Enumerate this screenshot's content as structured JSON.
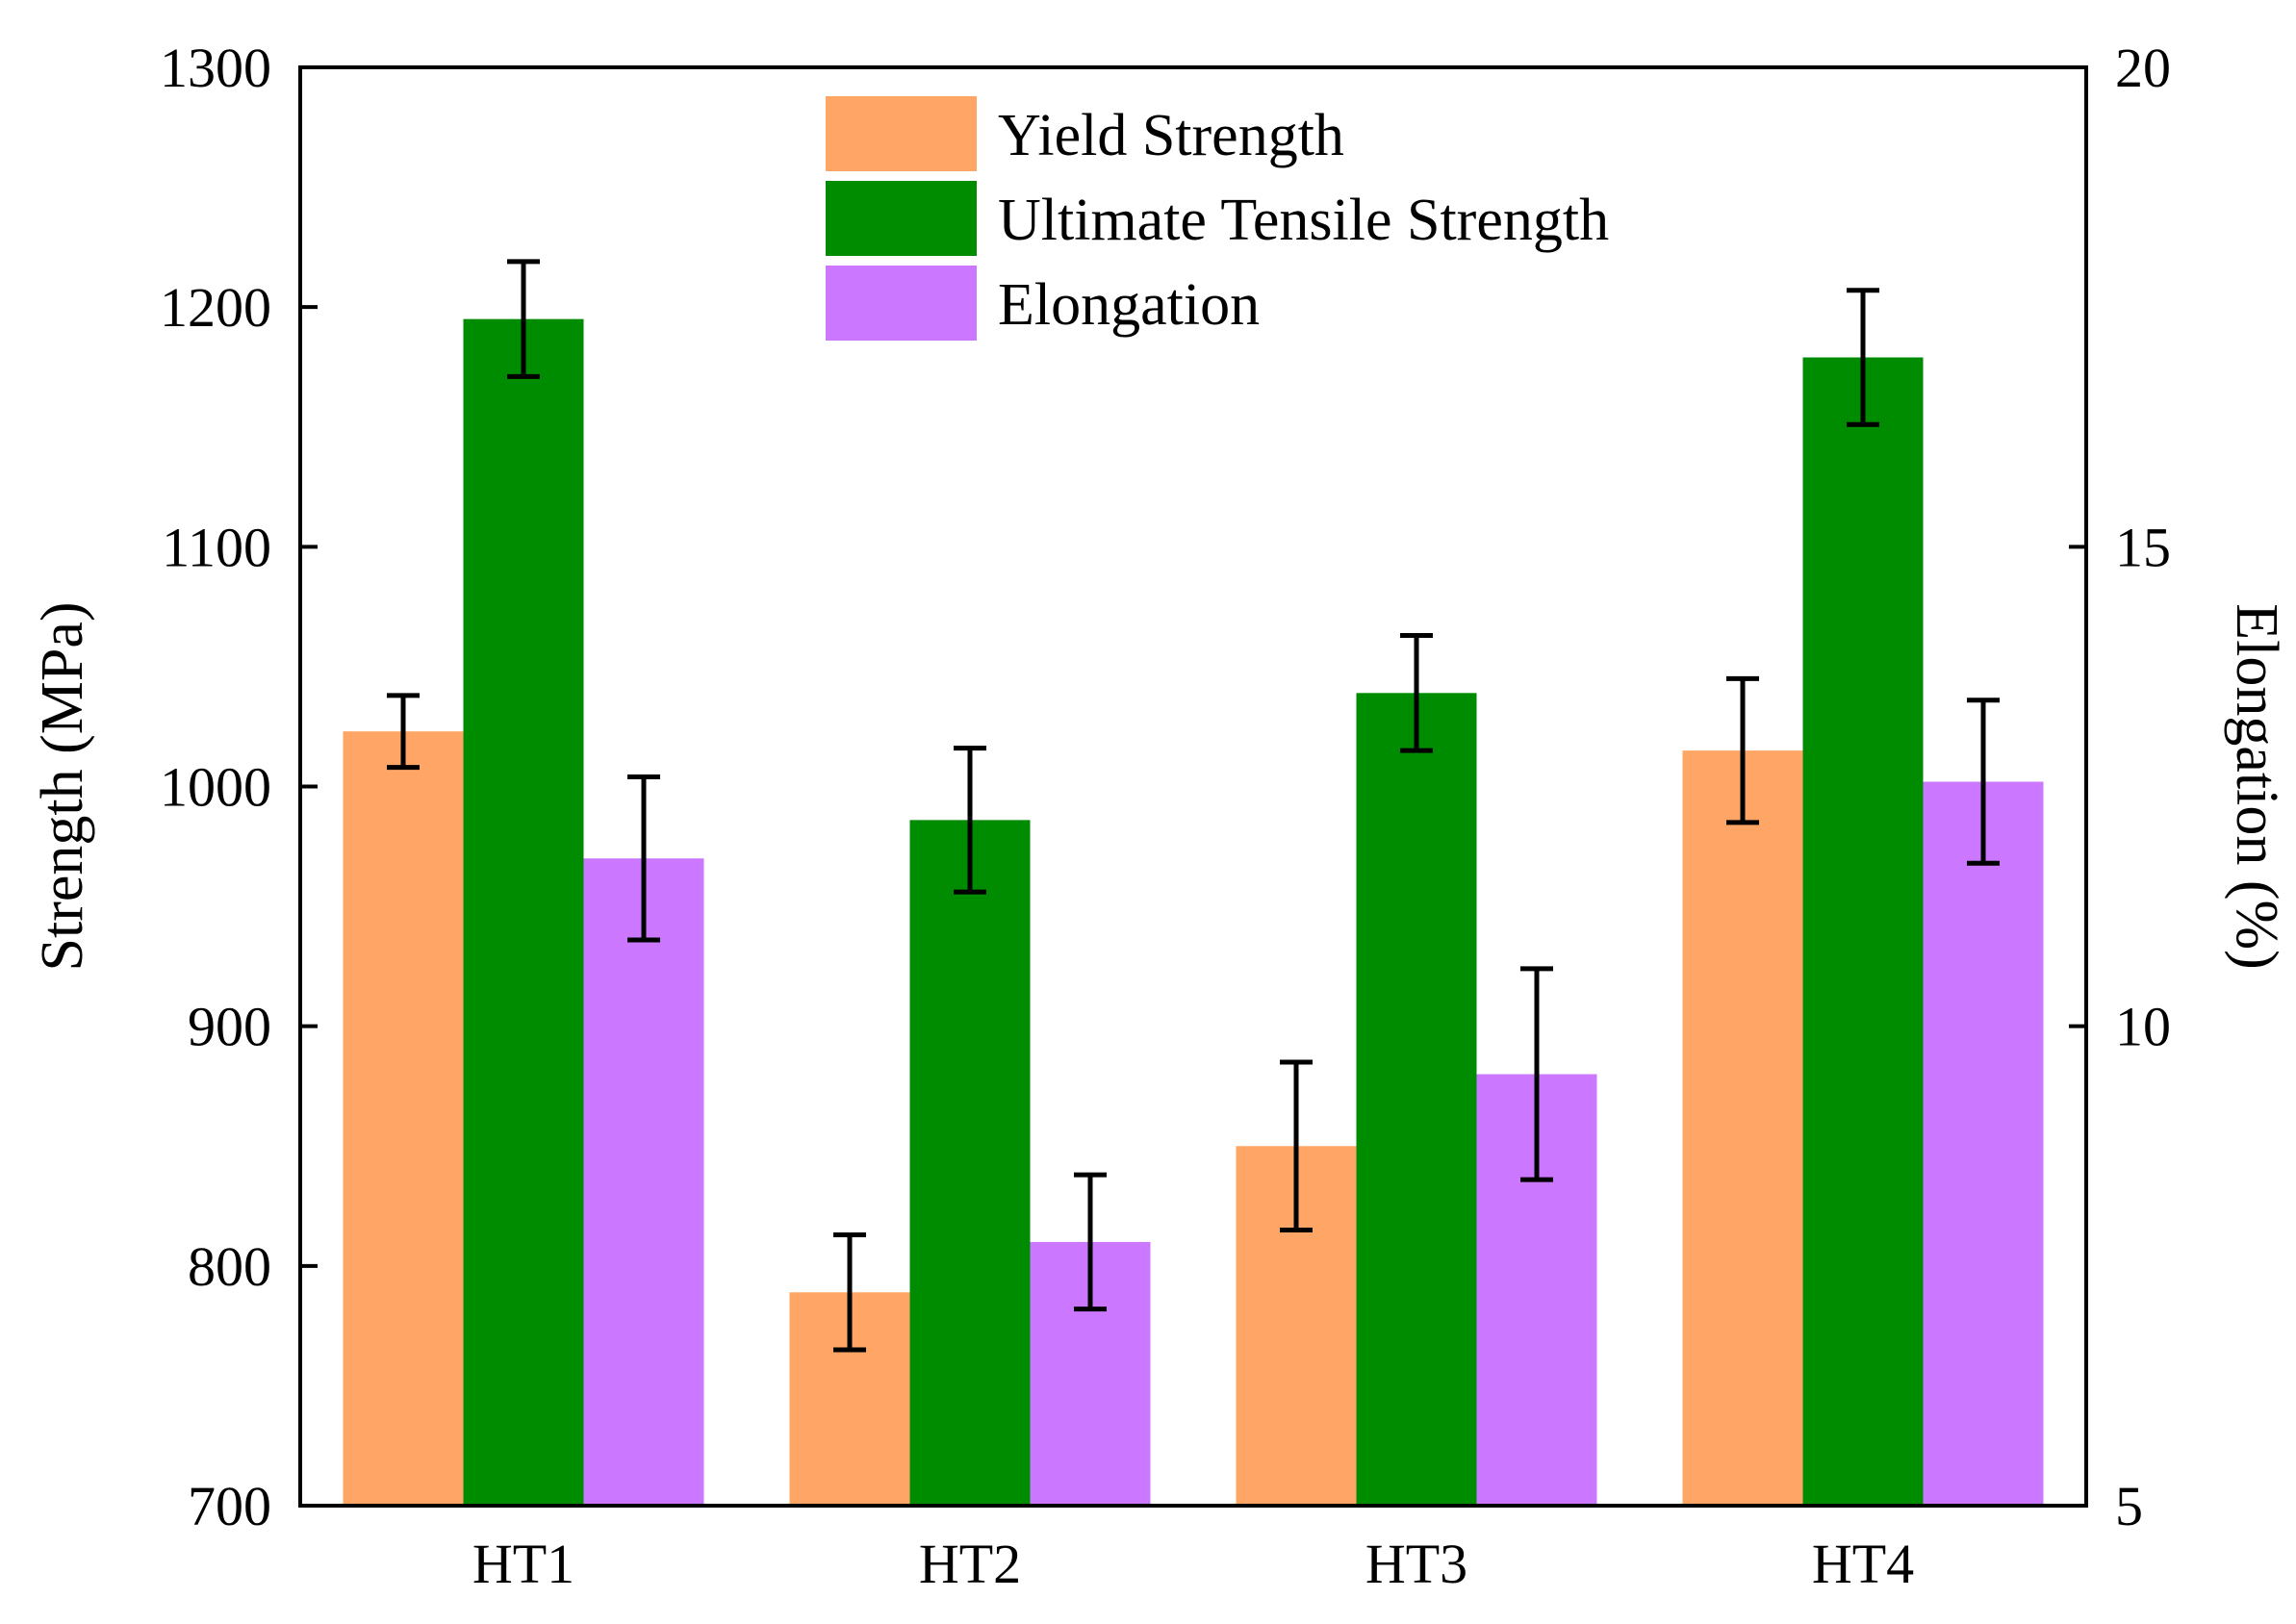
{
  "chart_data": {
    "type": "bar",
    "categories": [
      "HT1",
      "HT2",
      "HT3",
      "HT4"
    ],
    "series": [
      {
        "name": "Yield Strength",
        "axis": "left",
        "color": "#FFA666",
        "values": [
          1023,
          789,
          850,
          1015
        ],
        "errors": [
          15,
          24,
          35,
          30
        ]
      },
      {
        "name": "Ultimate Tensile Strength",
        "axis": "left",
        "color": "#008C00",
        "values": [
          1195,
          986,
          1039,
          1179
        ],
        "errors": [
          24,
          30,
          24,
          28
        ]
      },
      {
        "name": "Elongation",
        "axis": "right",
        "color": "#CC77FF",
        "values": [
          11.75,
          7.75,
          9.5,
          12.55
        ],
        "errors": [
          0.85,
          0.7,
          1.1,
          0.85
        ]
      }
    ],
    "ylabel": "Strength (MPa)",
    "ylabel_right": "Elongation (%)",
    "ylim": [
      700,
      1300
    ],
    "ylim_right": [
      5,
      20
    ],
    "yticks": [
      700,
      800,
      900,
      1000,
      1100,
      1200,
      1300
    ],
    "yticks_right": [
      5,
      10,
      15,
      20
    ],
    "legend_position": "top-center",
    "grid": false
  }
}
